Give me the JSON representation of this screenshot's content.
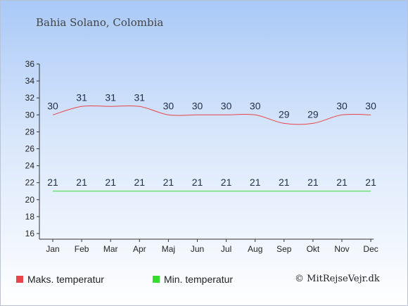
{
  "location": "Bahia Solano, Colombia",
  "legend": {
    "max_label": "Maks. temperatur",
    "min_label": "Min. temperatur"
  },
  "copyright": "© MitRejseVejr.dk",
  "colors": {
    "max": "#e8454a",
    "min": "#33dd33"
  },
  "chart_data": {
    "type": "line",
    "categories": [
      "Jan",
      "Feb",
      "Mar",
      "Apr",
      "Maj",
      "Jun",
      "Jul",
      "Aug",
      "Sep",
      "Okt",
      "Nov",
      "Dec"
    ],
    "series": [
      {
        "name": "Maks. temperatur",
        "values": [
          30,
          31,
          31,
          31,
          30,
          30,
          30,
          30,
          29,
          29,
          30,
          30
        ]
      },
      {
        "name": "Min. temperatur",
        "values": [
          21,
          21,
          21,
          21,
          21,
          21,
          21,
          21,
          21,
          21,
          21,
          21
        ]
      }
    ],
    "ylim": [
      16,
      36
    ],
    "yticks": [
      16,
      18,
      20,
      22,
      24,
      26,
      28,
      30,
      32,
      34,
      36
    ],
    "grid": false,
    "legend_position": "bottom"
  }
}
